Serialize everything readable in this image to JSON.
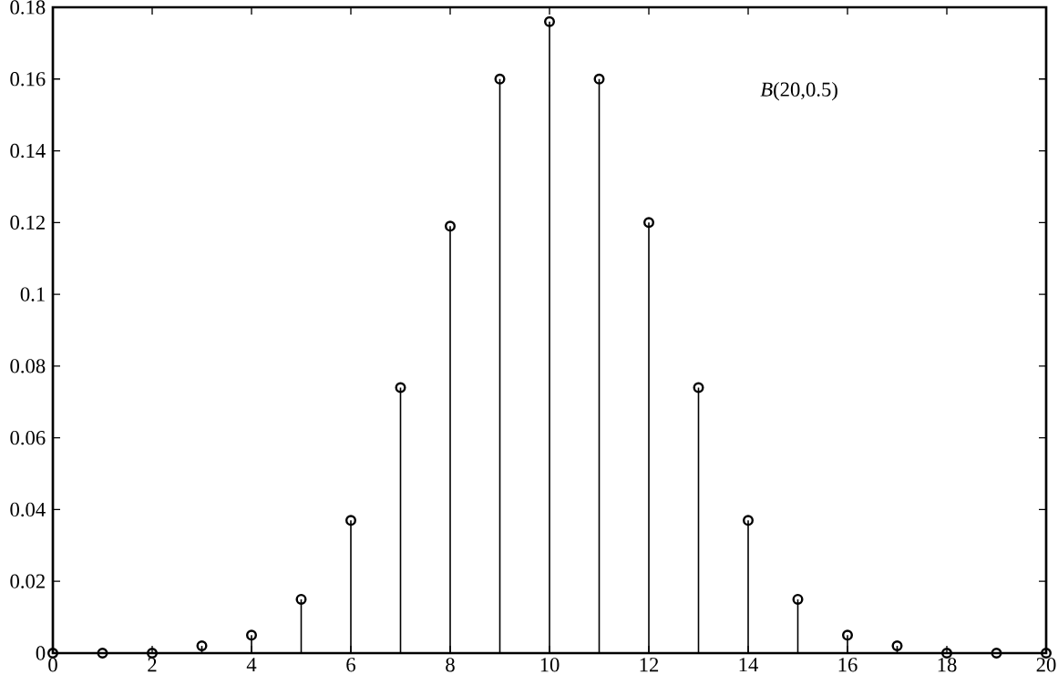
{
  "chart_data": {
    "type": "lollipop",
    "x": [
      0,
      1,
      2,
      3,
      4,
      5,
      6,
      7,
      8,
      9,
      10,
      11,
      12,
      13,
      14,
      15,
      16,
      17,
      18,
      19,
      20
    ],
    "values": [
      0,
      0,
      0,
      0.002,
      0.005,
      0.015,
      0.037,
      0.074,
      0.119,
      0.16,
      0.176,
      0.16,
      0.12,
      0.074,
      0.037,
      0.015,
      0.005,
      0.002,
      0,
      0,
      0
    ],
    "color": "#000000",
    "marker": "circle",
    "xlim": [
      0,
      20
    ],
    "ylim": [
      0,
      0.18
    ],
    "xticks": [
      0,
      2,
      4,
      6,
      8,
      10,
      12,
      14,
      16,
      18,
      20
    ],
    "yticks": [
      0,
      0.02,
      0.04,
      0.06,
      0.08,
      0.1,
      0.12,
      0.14,
      0.16,
      0.18
    ],
    "annotations": [
      "*B*(20,0.5)"
    ]
  }
}
